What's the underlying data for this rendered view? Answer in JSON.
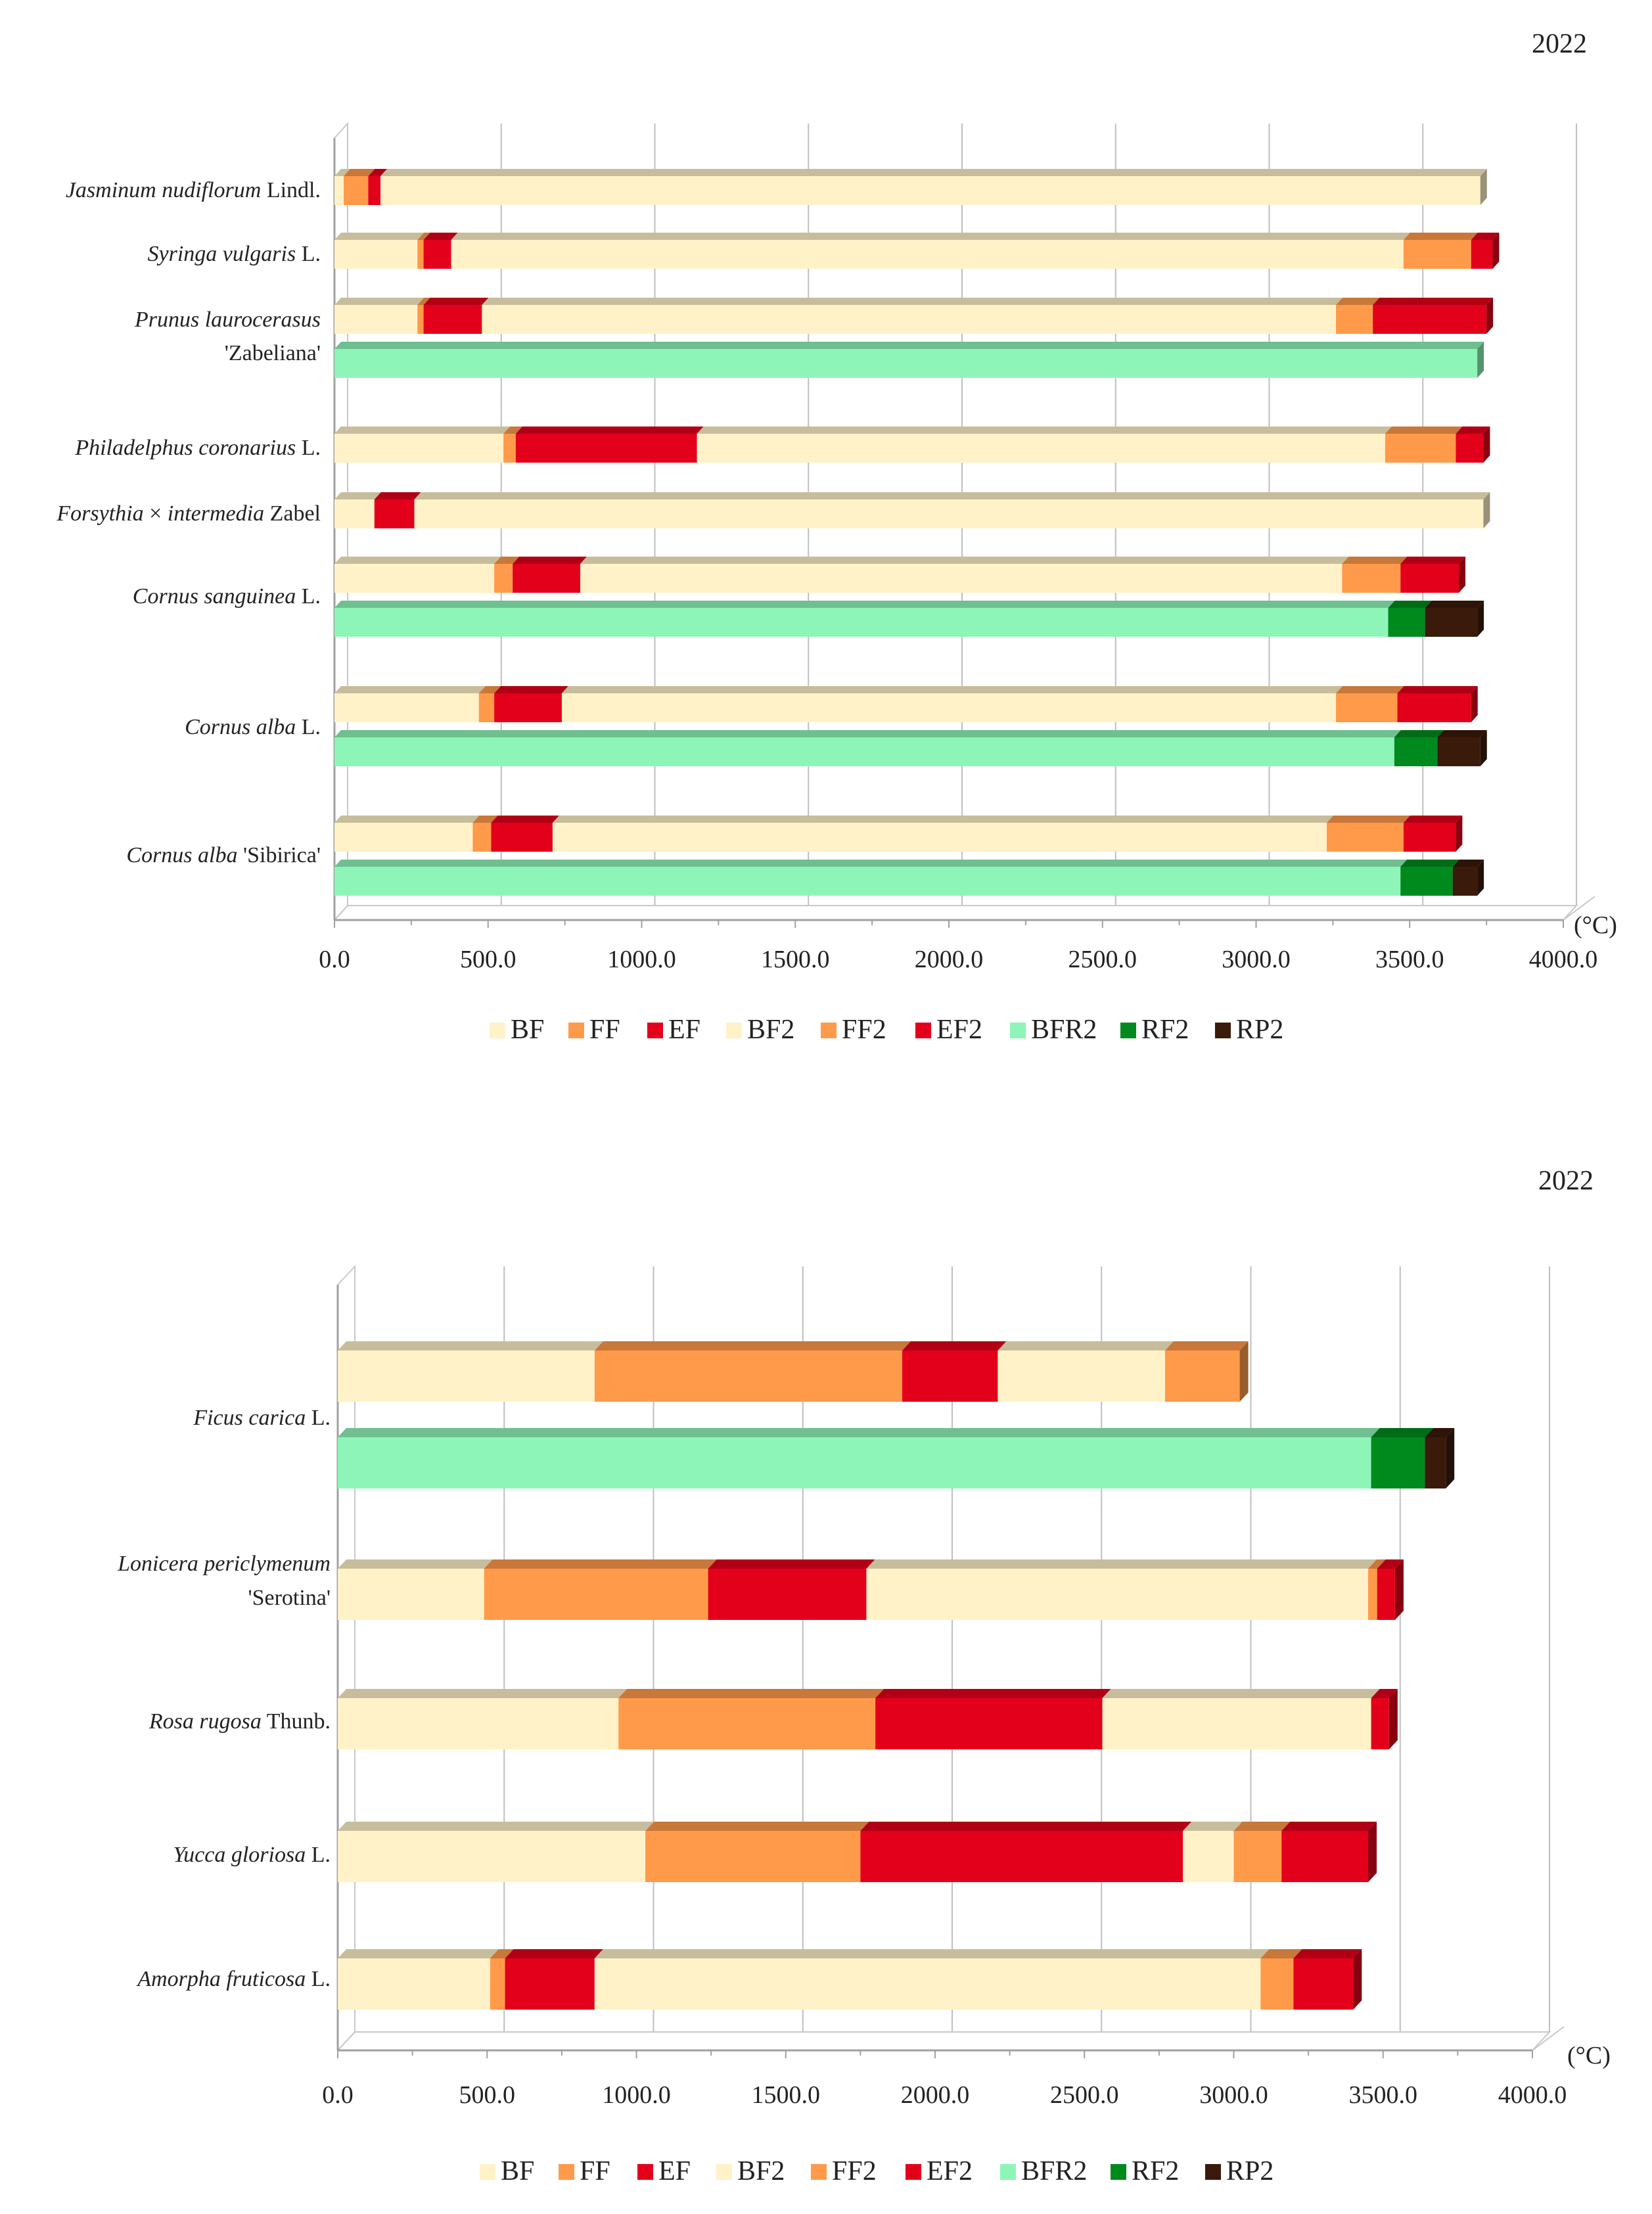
{
  "chart_data": [
    {
      "type": "bar",
      "orientation": "horizontal",
      "stacked": true,
      "year": "2022",
      "unit": "(°C)",
      "xlim": [
        0,
        4000
      ],
      "xticks": [
        "0.0",
        "500.0",
        "1000.0",
        "1500.0",
        "2000.0",
        "2500.0",
        "3000.0",
        "3500.0",
        "4000.0"
      ],
      "legend": [
        "BF",
        "FF",
        "EF",
        "BF2",
        "FF2",
        "EF2",
        "BFR2",
        "RF2",
        "RP2"
      ],
      "colors": {
        "BF": "#fff2c8",
        "FF": "#ff9a4a",
        "EF": "#e3001b",
        "BF2": "#fff2c8",
        "FF2": "#ff9a4a",
        "EF2": "#e3001b",
        "BFR2": "#8ef5b8",
        "RF2": "#008a1e",
        "RP2": "#3a1a0a"
      },
      "categories": [
        {
          "label": [
            {
              "t": "Jasminum nudiflorum",
              "i": true
            },
            {
              "t": " Lindl.",
              "i": false
            }
          ]
        },
        {
          "label": [
            {
              "t": "Syringa vulgaris",
              "i": true
            },
            {
              "t": " L.",
              "i": false
            }
          ]
        },
        {
          "label": [
            {
              "t": "Prunus laurocerasus",
              "i": true
            }
          ],
          "label2": [
            {
              "t": "'Zabeliana'",
              "i": false
            }
          ]
        },
        {
          "label": [
            {
              "t": "Philadelphus coronarius",
              "i": true
            },
            {
              "t": " L.",
              "i": false
            }
          ]
        },
        {
          "label": [
            {
              "t": "Forsythia",
              "i": true
            },
            {
              "t": " × ",
              "i": false
            },
            {
              "t": "intermedia",
              "i": true
            },
            {
              "t": " Zabel",
              "i": false
            }
          ]
        },
        {
          "label": [
            {
              "t": "Cornus sanguinea",
              "i": true
            },
            {
              "t": " L.",
              "i": false
            }
          ]
        },
        {
          "label": [
            {
              "t": "Cornus alba",
              "i": true
            },
            {
              "t": " L.",
              "i": false
            }
          ]
        },
        {
          "label": [
            {
              "t": "Cornus alba",
              "i": true
            },
            {
              "t": " 'Sibirica'",
              "i": false
            }
          ]
        }
      ],
      "bars": [
        {
          "category": 0,
          "row": "flowering",
          "segments": [
            [
              "BF",
              30
            ],
            [
              "FF",
              80
            ],
            [
              "EF",
              40
            ],
            [
              "BF2",
              3580
            ]
          ]
        },
        {
          "category": 1,
          "row": "flowering",
          "segments": [
            [
              "BF",
              270
            ],
            [
              "FF",
              20
            ],
            [
              "EF",
              90
            ],
            [
              "BF2",
              3100
            ],
            [
              "FF2",
              220
            ],
            [
              "EF2",
              70
            ]
          ]
        },
        {
          "category": 2,
          "row": "flowering",
          "segments": [
            [
              "BF",
              270
            ],
            [
              "FF",
              20
            ],
            [
              "EF",
              190
            ],
            [
              "BF2",
              2780
            ],
            [
              "FF2",
              120
            ],
            [
              "EF2",
              370
            ]
          ]
        },
        {
          "category": 2,
          "row": "fruiting",
          "segments": [
            [
              "BFR2",
              3720
            ]
          ]
        },
        {
          "category": 3,
          "row": "flowering",
          "segments": [
            [
              "BF",
              550
            ],
            [
              "FF",
              40
            ],
            [
              "EF",
              590
            ],
            [
              "BF2",
              2240
            ],
            [
              "FF2",
              230
            ],
            [
              "EF2",
              90
            ]
          ]
        },
        {
          "category": 4,
          "row": "flowering",
          "segments": [
            [
              "BF",
              130
            ],
            [
              "EF",
              130
            ],
            [
              "BF2",
              3480
            ]
          ]
        },
        {
          "category": 5,
          "row": "flowering",
          "segments": [
            [
              "BF",
              520
            ],
            [
              "FF",
              60
            ],
            [
              "EF",
              220
            ],
            [
              "BF2",
              2480
            ],
            [
              "FF2",
              190
            ],
            [
              "EF2",
              190
            ]
          ]
        },
        {
          "category": 5,
          "row": "fruiting",
          "segments": [
            [
              "BFR2",
              3430
            ],
            [
              "RF2",
              120
            ],
            [
              "RP2",
              170
            ]
          ]
        },
        {
          "category": 6,
          "row": "flowering",
          "segments": [
            [
              "BF",
              470
            ],
            [
              "FF",
              50
            ],
            [
              "EF",
              220
            ],
            [
              "BF2",
              2520
            ],
            [
              "FF2",
              200
            ],
            [
              "EF2",
              240
            ]
          ]
        },
        {
          "category": 6,
          "row": "fruiting",
          "segments": [
            [
              "BFR2",
              3450
            ],
            [
              "RF2",
              140
            ],
            [
              "RP2",
              140
            ]
          ]
        },
        {
          "category": 7,
          "row": "flowering",
          "segments": [
            [
              "BF",
              450
            ],
            [
              "FF",
              60
            ],
            [
              "EF",
              200
            ],
            [
              "BF2",
              2520
            ],
            [
              "FF2",
              250
            ],
            [
              "EF2",
              170
            ]
          ]
        },
        {
          "category": 7,
          "row": "fruiting",
          "segments": [
            [
              "BFR2",
              3470
            ],
            [
              "RF2",
              170
            ],
            [
              "RP2",
              80
            ]
          ]
        }
      ]
    },
    {
      "type": "bar",
      "orientation": "horizontal",
      "stacked": true,
      "year": "2022",
      "unit": "(°C)",
      "xlim": [
        0,
        4000
      ],
      "xticks": [
        "0.0",
        "500.0",
        "1000.0",
        "1500.0",
        "2000.0",
        "2500.0",
        "3000.0",
        "3500.0",
        "4000.0"
      ],
      "legend": [
        "BF",
        "FF",
        "EF",
        "BF2",
        "FF2",
        "EF2",
        "BFR2",
        "RF2",
        "RP2"
      ],
      "colors": {
        "BF": "#fff2c8",
        "FF": "#ff9a4a",
        "EF": "#e3001b",
        "BF2": "#fff2c8",
        "FF2": "#ff9a4a",
        "EF2": "#e3001b",
        "BFR2": "#8ef5b8",
        "RF2": "#008a1e",
        "RP2": "#3a1a0a"
      },
      "categories": [
        {
          "label": [
            {
              "t": "Ficus carica",
              "i": true
            },
            {
              "t": " L.",
              "i": false
            }
          ]
        },
        {
          "label": [
            {
              "t": "Lonicera periclymenum",
              "i": true
            }
          ],
          "label2": [
            {
              "t": "'Serotina'",
              "i": false
            }
          ]
        },
        {
          "label": [
            {
              "t": "Rosa rugosa",
              "i": true
            },
            {
              "t": " Thunb.",
              "i": false
            }
          ]
        },
        {
          "label": [
            {
              "t": "Yucca gloriosa",
              "i": true
            },
            {
              "t": " L.",
              "i": false
            }
          ]
        },
        {
          "label": [
            {
              "t": "Amorpha fruticosa",
              "i": true
            },
            {
              "t": " L.",
              "i": false
            }
          ]
        }
      ],
      "bars": [
        {
          "category": 0,
          "row": "flowering",
          "segments": [
            [
              "BF",
              860
            ],
            [
              "FF",
              1030
            ],
            [
              "EF",
              320
            ],
            [
              "BF2",
              560
            ],
            [
              "FF2",
              250
            ]
          ]
        },
        {
          "category": 0,
          "row": "fruiting",
          "segments": [
            [
              "BFR2",
              3460
            ],
            [
              "RF2",
              180
            ],
            [
              "RP2",
              70
            ]
          ]
        },
        {
          "category": 1,
          "row": "flowering",
          "segments": [
            [
              "BF",
              490
            ],
            [
              "FF",
              750
            ],
            [
              "EF",
              530
            ],
            [
              "BF2",
              1680
            ],
            [
              "FF2",
              30
            ],
            [
              "EF2",
              60
            ]
          ]
        },
        {
          "category": 2,
          "row": "flowering",
          "segments": [
            [
              "BF",
              940
            ],
            [
              "FF",
              860
            ],
            [
              "EF",
              760
            ],
            [
              "BF2",
              900
            ],
            [
              "EF2",
              60
            ]
          ]
        },
        {
          "category": 3,
          "row": "flowering",
          "segments": [
            [
              "BF",
              1030
            ],
            [
              "FF",
              720
            ],
            [
              "EF",
              1080
            ],
            [
              "BF2",
              170
            ],
            [
              "FF2",
              160
            ],
            [
              "EF2",
              290
            ]
          ]
        },
        {
          "category": 4,
          "row": "flowering",
          "segments": [
            [
              "BF",
              510
            ],
            [
              "FF",
              50
            ],
            [
              "EF",
              300
            ],
            [
              "BF2",
              2230
            ],
            [
              "FF2",
              110
            ],
            [
              "EF2",
              200
            ]
          ]
        }
      ]
    }
  ]
}
